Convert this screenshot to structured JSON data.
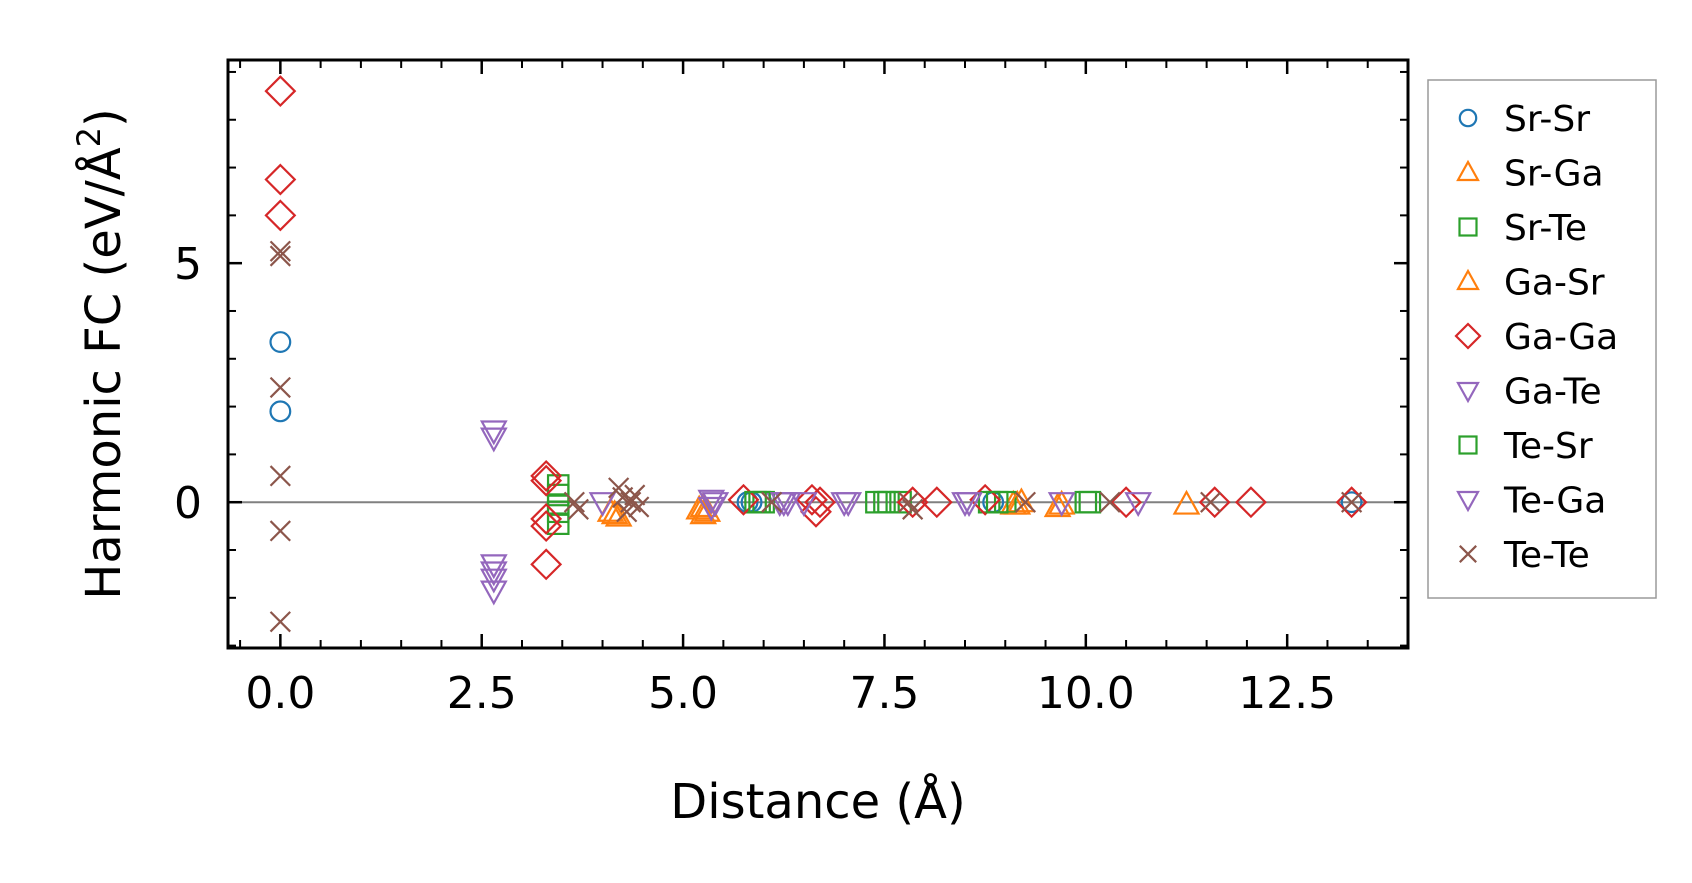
{
  "chart_data": {
    "type": "scatter",
    "xlabel": "Distance (Å)",
    "ylabel": "Harmonic FC (eV/Å²)",
    "ylabel_parts": [
      "Harmonic FC (eV/Å",
      "2",
      ")"
    ],
    "xlim": [
      -0.65,
      14.0
    ],
    "ylim": [
      -3.05,
      9.25
    ],
    "x_ticks": [
      0.0,
      2.5,
      5.0,
      7.5,
      10.0,
      12.5
    ],
    "x_tick_labels": [
      "0.0",
      "2.5",
      "5.0",
      "7.5",
      "10.0",
      "12.5"
    ],
    "y_ticks": [
      0,
      5
    ],
    "y_tick_labels": [
      "0",
      "5"
    ],
    "reference_line_y": 0,
    "legend_position": "outside-right",
    "series": [
      {
        "name": "Sr-Sr",
        "marker": "circle",
        "color": "#1f77b4",
        "x": [
          0,
          0,
          5.8,
          5.85,
          8.85,
          13.3
        ],
        "y": [
          3.35,
          1.9,
          0.0,
          0.0,
          0.0,
          0.0
        ]
      },
      {
        "name": "Sr-Ga",
        "marker": "triangle-up",
        "color": "#ff7f0e",
        "x": [
          4.15,
          4.2,
          5.25,
          5.3,
          9.1,
          9.2,
          9.7,
          11.25
        ],
        "y": [
          -0.25,
          -0.3,
          -0.1,
          -0.2,
          -0.05,
          0.0,
          -0.05,
          -0.05
        ]
      },
      {
        "name": "Sr-Te",
        "marker": "square",
        "color": "#2ca02c",
        "x": [
          3.45,
          3.45,
          3.45,
          3.45,
          3.45,
          5.9,
          6.0,
          7.4,
          7.55,
          7.7,
          8.8,
          9.0,
          10.0
        ],
        "y": [
          0.35,
          0.15,
          -0.05,
          -0.2,
          -0.45,
          0.0,
          0.0,
          0.0,
          0.0,
          0.0,
          0.0,
          0.0,
          0.0
        ]
      },
      {
        "name": "Ga-Sr",
        "marker": "triangle-up",
        "color": "#ff7f0e",
        "x": [
          4.1,
          5.2,
          5.25,
          9.15,
          9.65
        ],
        "y": [
          -0.2,
          -0.15,
          -0.25,
          -0.05,
          -0.1
        ]
      },
      {
        "name": "Ga-Ga",
        "marker": "diamond",
        "color": "#d62728",
        "x": [
          0,
          0,
          0,
          3.3,
          3.3,
          3.3,
          3.3,
          3.3,
          5.75,
          6.6,
          6.65,
          6.7,
          7.85,
          8.15,
          8.75,
          10.5,
          11.6,
          12.05,
          13.3
        ],
        "y": [
          8.6,
          6.75,
          6.0,
          0.55,
          0.45,
          -0.35,
          -0.5,
          -1.3,
          0.05,
          0.05,
          -0.2,
          0.0,
          0.0,
          0.0,
          0.05,
          0.0,
          0.0,
          0.0,
          0.0
        ]
      },
      {
        "name": "Ga-Te",
        "marker": "triangle-down",
        "color": "#9467bd",
        "x": [
          2.65,
          2.65,
          2.65,
          2.65,
          2.65,
          2.65,
          4.0,
          5.35,
          5.4,
          6.2,
          6.3,
          6.5,
          7.05,
          8.5,
          9.7,
          10.65
        ],
        "y": [
          1.5,
          1.35,
          -1.3,
          -1.45,
          -1.6,
          -1.85,
          0.0,
          0.05,
          0.0,
          0.0,
          0.0,
          0.0,
          0.0,
          0.0,
          0.0,
          0.0
        ]
      },
      {
        "name": "Te-Sr",
        "marker": "square",
        "color": "#2ca02c",
        "x": [
          5.95,
          7.5,
          8.9,
          10.05
        ],
        "y": [
          0.0,
          0.0,
          0.0,
          0.0
        ]
      },
      {
        "name": "Te-Ga",
        "marker": "triangle-down",
        "color": "#9467bd",
        "x": [
          5.35,
          6.25,
          7.0,
          8.55
        ],
        "y": [
          -0.1,
          0.0,
          0.0,
          0.0
        ]
      },
      {
        "name": "Te-Te",
        "marker": "x",
        "color": "#8c564b",
        "x": [
          0,
          0,
          0,
          0,
          0,
          0,
          3.65,
          3.7,
          4.2,
          4.25,
          4.3,
          4.35,
          4.4,
          4.45,
          6.1,
          7.8,
          7.85,
          9.25,
          10.3,
          11.55,
          13.3
        ],
        "y": [
          5.25,
          5.15,
          2.4,
          0.55,
          -0.6,
          -2.5,
          0.0,
          -0.15,
          0.3,
          0.1,
          -0.2,
          0.0,
          0.15,
          -0.1,
          0.0,
          0.0,
          -0.15,
          0.0,
          0.0,
          0.0,
          0.0
        ]
      }
    ]
  }
}
